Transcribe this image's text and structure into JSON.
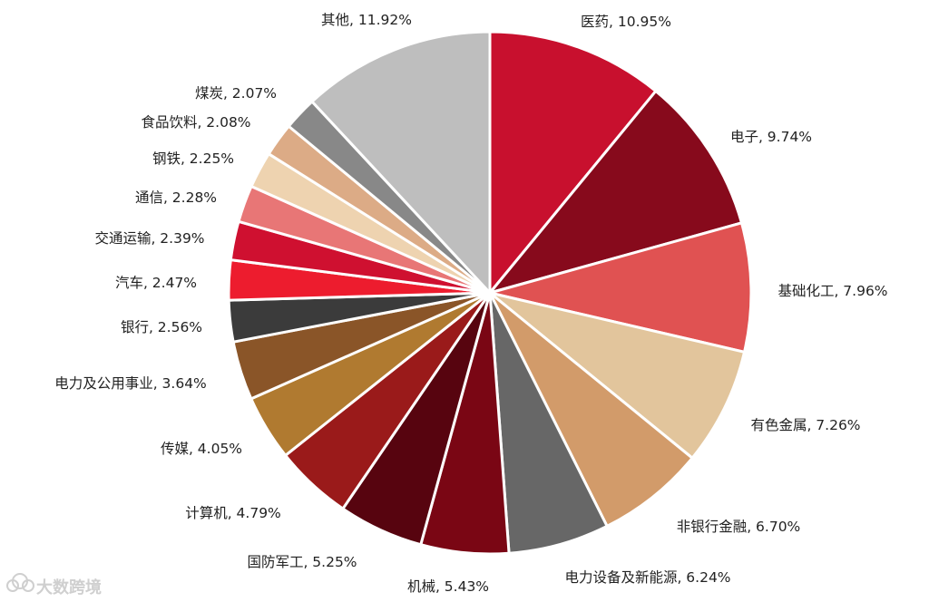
{
  "chart_data": {
    "type": "pie",
    "labels": [
      "医药",
      "电子",
      "基础化工",
      "有色金属",
      "非银行金融",
      "电力设备及新能源",
      "机械",
      "国防军工",
      "计算机",
      "传媒",
      "电力及公用事业",
      "银行",
      "汽车",
      "交通运输",
      "通信",
      "钢铁",
      "食品饮料",
      "煤炭",
      "其他"
    ],
    "values": [
      10.95,
      9.74,
      7.96,
      7.26,
      6.7,
      6.24,
      5.43,
      5.25,
      4.79,
      4.05,
      3.64,
      2.56,
      2.47,
      2.39,
      2.28,
      2.25,
      2.08,
      2.07,
      11.92
    ],
    "data_labels": [
      "医药, 10.95%",
      "电子, 9.74%",
      "基础化工, 7.96%",
      "有色金属, 7.26%",
      "非银行金融, 6.70%",
      "电力设备及新能源, 6.24%",
      "机械, 5.43%",
      "国防军工, 5.25%",
      "计算机, 4.79%",
      "传媒, 4.05%",
      "电力及公用事业, 3.64%",
      "银行, 2.56%",
      "汽车, 2.47%",
      "交通运输, 2.39%",
      "通信, 2.28%",
      "钢铁, 2.25%",
      "食品饮料, 2.08%",
      "煤炭, 2.07%",
      "其他, 11.92%"
    ],
    "colors": [
      "#c8102e",
      "#870a1c",
      "#e05252",
      "#e2c59c",
      "#d29b6a",
      "#676767",
      "#7a0614",
      "#57040f",
      "#9a1a1a",
      "#b07a30",
      "#8a5528",
      "#3b3b3b",
      "#ed1c2e",
      "#cf1030",
      "#e87676",
      "#eed3b0",
      "#dcab86",
      "#888888",
      "#bebebe"
    ],
    "start": "12 o'clock",
    "direction": "clockwise",
    "legend": "none"
  },
  "watermark": {
    "text": "大数跨境",
    "icon": "cloud-logo-icon"
  }
}
